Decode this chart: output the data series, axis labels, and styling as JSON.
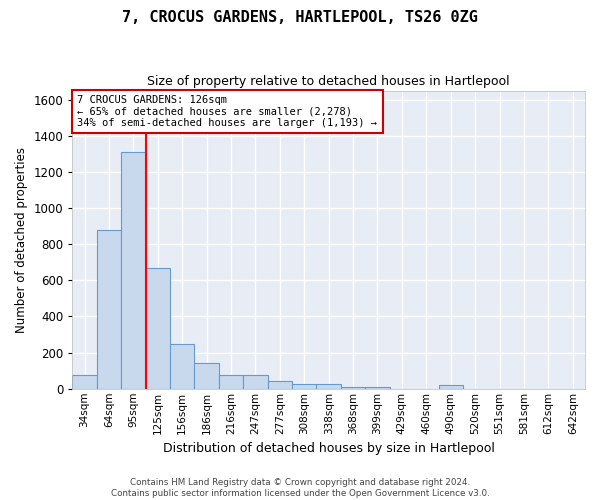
{
  "title": "7, CROCUS GARDENS, HARTLEPOOL, TS26 0ZG",
  "subtitle": "Size of property relative to detached houses in Hartlepool",
  "xlabel": "Distribution of detached houses by size in Hartlepool",
  "ylabel": "Number of detached properties",
  "bar_color": "#c8d9ee",
  "bar_edge_color": "#6699cc",
  "categories": [
    "34sqm",
    "64sqm",
    "95sqm",
    "125sqm",
    "156sqm",
    "186sqm",
    "216sqm",
    "247sqm",
    "277sqm",
    "308sqm",
    "338sqm",
    "368sqm",
    "399sqm",
    "429sqm",
    "460sqm",
    "490sqm",
    "520sqm",
    "551sqm",
    "581sqm",
    "612sqm",
    "642sqm"
  ],
  "values": [
    75,
    880,
    1310,
    670,
    245,
    140,
    78,
    78,
    45,
    25,
    25,
    12,
    12,
    0,
    0,
    20,
    0,
    0,
    0,
    0,
    0
  ],
  "ylim": [
    0,
    1650
  ],
  "yticks": [
    0,
    200,
    400,
    600,
    800,
    1000,
    1200,
    1400,
    1600
  ],
  "red_line_x": 2.5,
  "annotation_text": "7 CROCUS GARDENS: 126sqm\n← 65% of detached houses are smaller (2,278)\n34% of semi-detached houses are larger (1,193) →",
  "annotation_box_color": "#cc0000",
  "footer_line1": "Contains HM Land Registry data © Crown copyright and database right 2024.",
  "footer_line2": "Contains public sector information licensed under the Open Government Licence v3.0.",
  "background_color": "#e8edf5",
  "grid_color": "#ffffff"
}
